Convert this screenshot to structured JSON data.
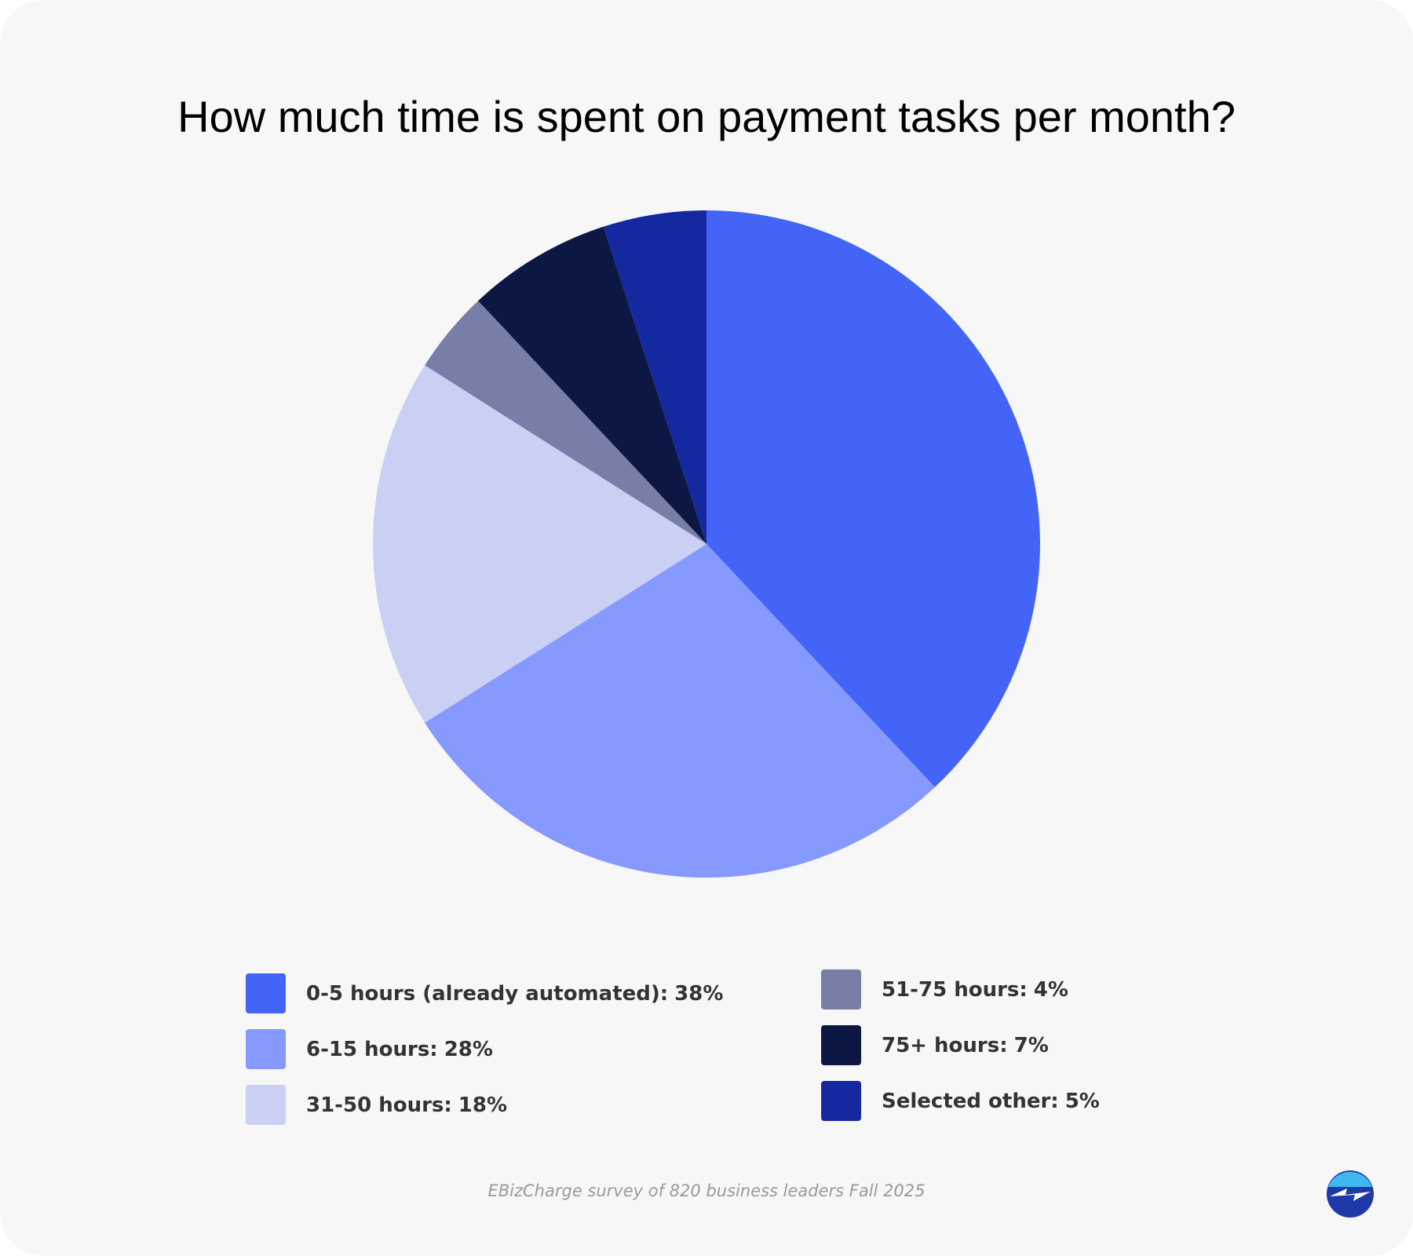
{
  "chart_data": {
    "type": "pie",
    "title": "How much time is spent on payment tasks per month?",
    "categories": [
      "0-5 hours (already automated):",
      "6-15 hours:",
      "31-50 hours:",
      "51-75 hours:",
      "75+ hours:",
      "Selected other:"
    ],
    "values": [
      38,
      28,
      18,
      4,
      7,
      5
    ],
    "value_labels": [
      "38%",
      "28%",
      "18%",
      "4%",
      "7%",
      "5%"
    ],
    "colors": [
      "#4364f7",
      "#8699ff",
      "#cad0f3",
      "#777ea8",
      "#0d1744",
      "#1428a0"
    ],
    "source": "EBizCharge survey of 820 business leaders Fall 2025"
  }
}
